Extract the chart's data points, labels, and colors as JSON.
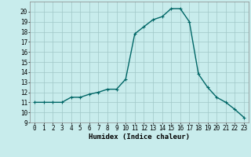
{
  "x": [
    0,
    1,
    2,
    3,
    4,
    5,
    6,
    7,
    8,
    9,
    10,
    11,
    12,
    13,
    14,
    15,
    16,
    17,
    18,
    19,
    20,
    21,
    22,
    23
  ],
  "y": [
    11,
    11,
    11,
    11,
    11.5,
    11.5,
    11.8,
    12,
    12.3,
    12.3,
    13.3,
    17.8,
    18.5,
    19.2,
    19.5,
    20.3,
    20.3,
    19,
    13.8,
    12.5,
    11.5,
    11,
    10.3,
    9.5
  ],
  "line_color": "#006666",
  "marker": "+",
  "marker_size": 3,
  "bg_color": "#c8ecec",
  "grid_color": "#a0c8c8",
  "xlabel": "Humidex (Indice chaleur)",
  "xlabel_fontsize": 6.5,
  "xlim": [
    -0.5,
    23.5
  ],
  "ylim": [
    9,
    21
  ],
  "yticks": [
    9,
    10,
    11,
    12,
    13,
    14,
    15,
    16,
    17,
    18,
    19,
    20
  ],
  "xticks": [
    0,
    1,
    2,
    3,
    4,
    5,
    6,
    7,
    8,
    9,
    10,
    11,
    12,
    13,
    14,
    15,
    16,
    17,
    18,
    19,
    20,
    21,
    22,
    23
  ],
  "tick_fontsize": 5.5,
  "line_width": 1.0,
  "marker_edge_width": 0.8
}
